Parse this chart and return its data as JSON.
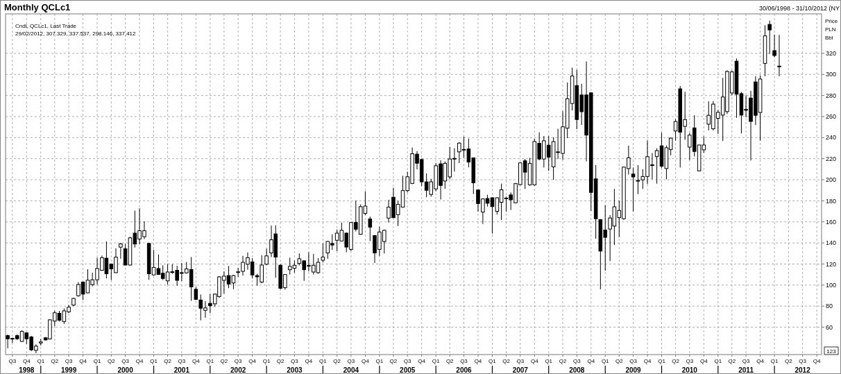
{
  "chart_data": {
    "type": "candlestick",
    "title": "Monthly QCLc1",
    "subtitle": "30/06/1998 - 31/10/2012 (NY",
    "ylabel": "Price PLN Bbl",
    "annotations": [
      "Cndl, QCLc1, Last Trade",
      "29/02/2012, 307.329, 337.537, 298.146, 337.412",
      "123"
    ],
    "grid": true,
    "xlim": [
      "1998-05-18",
      "2012-11-01"
    ],
    "ylim": [
      34,
      357.5
    ],
    "yticks": [
      60,
      80,
      100,
      120,
      140,
      160,
      180,
      200,
      220,
      240,
      260,
      280,
      300,
      320
    ],
    "xticks": [
      {
        "value": "1998-07",
        "label": "Q3"
      },
      {
        "value": "1998-10",
        "label": "Q4"
      },
      {
        "value": "1999-01",
        "label": "Q1"
      },
      {
        "value": "1999-04",
        "label": "Q2"
      },
      {
        "value": "1999-07",
        "label": "Q3"
      },
      {
        "value": "1999-10",
        "label": "Q4"
      },
      {
        "value": "2000-01",
        "label": "Q1"
      },
      {
        "value": "2000-04",
        "label": "Q2"
      },
      {
        "value": "2000-07",
        "label": "Q3"
      },
      {
        "value": "2000-10",
        "label": "Q4"
      },
      {
        "value": "2001-01",
        "label": "Q1"
      },
      {
        "value": "2001-04",
        "label": "Q2"
      },
      {
        "value": "2001-07",
        "label": "Q3"
      },
      {
        "value": "2001-10",
        "label": "Q4"
      },
      {
        "value": "2002-01",
        "label": "Q1"
      },
      {
        "value": "2002-04",
        "label": "Q2"
      },
      {
        "value": "2002-07",
        "label": "Q3"
      },
      {
        "value": "2002-10",
        "label": "Q4"
      },
      {
        "value": "2003-01",
        "label": "Q1"
      },
      {
        "value": "2003-04",
        "label": "Q2"
      },
      {
        "value": "2003-07",
        "label": "Q3"
      },
      {
        "value": "2003-10",
        "label": "Q4"
      },
      {
        "value": "2004-01",
        "label": "Q1"
      },
      {
        "value": "2004-04",
        "label": "Q2"
      },
      {
        "value": "2004-07",
        "label": "Q3"
      },
      {
        "value": "2004-10",
        "label": "Q4"
      },
      {
        "value": "2005-01",
        "label": "Q1"
      },
      {
        "value": "2005-04",
        "label": "Q2"
      },
      {
        "value": "2005-07",
        "label": "Q3"
      },
      {
        "value": "2005-10",
        "label": "Q4"
      },
      {
        "value": "2006-01",
        "label": "Q1"
      },
      {
        "value": "2006-04",
        "label": "Q2"
      },
      {
        "value": "2006-07",
        "label": "Q3"
      },
      {
        "value": "2006-10",
        "label": "Q4"
      },
      {
        "value": "2007-01",
        "label": "Q1"
      },
      {
        "value": "2007-04",
        "label": "Q2"
      },
      {
        "value": "2007-07",
        "label": "Q3"
      },
      {
        "value": "2007-10",
        "label": "Q4"
      },
      {
        "value": "2008-01",
        "label": "Q1"
      },
      {
        "value": "2008-04",
        "label": "Q2"
      },
      {
        "value": "2008-07",
        "label": "Q3"
      },
      {
        "value": "2008-10",
        "label": "Q4"
      },
      {
        "value": "2009-01",
        "label": "Q1"
      },
      {
        "value": "2009-04",
        "label": "Q2"
      },
      {
        "value": "2009-07",
        "label": "Q3"
      },
      {
        "value": "2009-10",
        "label": "Q4"
      },
      {
        "value": "2010-01",
        "label": "Q1"
      },
      {
        "value": "2010-04",
        "label": "Q2"
      },
      {
        "value": "2010-07",
        "label": "Q3"
      },
      {
        "value": "2010-10",
        "label": "Q4"
      },
      {
        "value": "2011-01",
        "label": "Q1"
      },
      {
        "value": "2011-04",
        "label": "Q2"
      },
      {
        "value": "2011-07",
        "label": "Q3"
      },
      {
        "value": "2011-10",
        "label": "Q4"
      },
      {
        "value": "2012-01",
        "label": "Q1"
      },
      {
        "value": "2012-04",
        "label": "Q2"
      },
      {
        "value": "2012-07",
        "label": "Q3"
      },
      {
        "value": "2012-10",
        "label": "Q4"
      }
    ],
    "x2lim": [
      "1998-05-18",
      "2012-11-01"
    ],
    "x2ticks": [
      {
        "value": "1998-10",
        "label": "1998"
      },
      {
        "value": "1999-01",
        "label": null
      },
      {
        "value": "1999-07",
        "label": "1999"
      },
      {
        "value": "2000-01",
        "label": null
      },
      {
        "value": "2000-07",
        "label": "2000"
      },
      {
        "value": "2001-01",
        "label": null
      },
      {
        "value": "2001-07",
        "label": "2001"
      },
      {
        "value": "2002-01",
        "label": null
      },
      {
        "value": "2002-07",
        "label": "2002"
      },
      {
        "value": "2003-01",
        "label": null
      },
      {
        "value": "2003-07",
        "label": "2003"
      },
      {
        "value": "2004-01",
        "label": null
      },
      {
        "value": "2004-07",
        "label": "2004"
      },
      {
        "value": "2005-01",
        "label": null
      },
      {
        "value": "2005-07",
        "label": "2005"
      },
      {
        "value": "2006-01",
        "label": null
      },
      {
        "value": "2006-07",
        "label": "2006"
      },
      {
        "value": "2007-01",
        "label": null
      },
      {
        "value": "2007-07",
        "label": "2007"
      },
      {
        "value": "2008-01",
        "label": null
      },
      {
        "value": "2008-07",
        "label": "2008"
      },
      {
        "value": "2009-01",
        "label": null
      },
      {
        "value": "2009-07",
        "label": "2009"
      },
      {
        "value": "2010-01",
        "label": null
      },
      {
        "value": "2010-07",
        "label": "2010"
      },
      {
        "value": "2011-01",
        "label": null
      },
      {
        "value": "2011-07",
        "label": "2011"
      },
      {
        "value": "2012-01",
        "label": null
      },
      {
        "value": "2012-07",
        "label": "2012"
      }
    ],
    "x": [
      "1998-06",
      "1998-07",
      "1998-08",
      "1998-09",
      "1998-10",
      "1998-11",
      "1998-12",
      "1999-01",
      "1999-02",
      "1999-03",
      "1999-04",
      "1999-05",
      "1999-06",
      "1999-07",
      "1999-08",
      "1999-09",
      "1999-10",
      "1999-11",
      "1999-12",
      "2000-01",
      "2000-02",
      "2000-03",
      "2000-04",
      "2000-05",
      "2000-06",
      "2000-07",
      "2000-08",
      "2000-09",
      "2000-10",
      "2000-11",
      "2000-12",
      "2001-01",
      "2001-02",
      "2001-03",
      "2001-04",
      "2001-05",
      "2001-06",
      "2001-07",
      "2001-08",
      "2001-09",
      "2001-10",
      "2001-11",
      "2001-12",
      "2002-01",
      "2002-02",
      "2002-03",
      "2002-04",
      "2002-05",
      "2002-06",
      "2002-07",
      "2002-08",
      "2002-09",
      "2002-10",
      "2002-11",
      "2002-12",
      "2003-01",
      "2003-02",
      "2003-03",
      "2003-04",
      "2003-05",
      "2003-06",
      "2003-07",
      "2003-08",
      "2003-09",
      "2003-10",
      "2003-11",
      "2003-12",
      "2004-01",
      "2004-02",
      "2004-03",
      "2004-04",
      "2004-05",
      "2004-06",
      "2004-07",
      "2004-08",
      "2004-09",
      "2004-10",
      "2004-11",
      "2004-12",
      "2005-01",
      "2005-02",
      "2005-03",
      "2005-04",
      "2005-05",
      "2005-06",
      "2005-07",
      "2005-08",
      "2005-09",
      "2005-10",
      "2005-11",
      "2005-12",
      "2006-01",
      "2006-02",
      "2006-03",
      "2006-04",
      "2006-05",
      "2006-06",
      "2006-07",
      "2006-08",
      "2006-09",
      "2006-10",
      "2006-11",
      "2006-12",
      "2007-01",
      "2007-02",
      "2007-03",
      "2007-04",
      "2007-05",
      "2007-06",
      "2007-07",
      "2007-08",
      "2007-09",
      "2007-10",
      "2007-11",
      "2007-12",
      "2008-01",
      "2008-02",
      "2008-03",
      "2008-04",
      "2008-05",
      "2008-06",
      "2008-07",
      "2008-08",
      "2008-09",
      "2008-10",
      "2008-11",
      "2008-12",
      "2009-01",
      "2009-02",
      "2009-03",
      "2009-04",
      "2009-05",
      "2009-06",
      "2009-07",
      "2009-08",
      "2009-09",
      "2009-10",
      "2009-11",
      "2009-12",
      "2010-01",
      "2010-02",
      "2010-03",
      "2010-04",
      "2010-05",
      "2010-06",
      "2010-07",
      "2010-08",
      "2010-09",
      "2010-10",
      "2010-11",
      "2010-12",
      "2011-01",
      "2011-02",
      "2011-03",
      "2011-04",
      "2011-05",
      "2011-06",
      "2011-07",
      "2011-08",
      "2011-09",
      "2011-10",
      "2011-11",
      "2011-12",
      "2012-01",
      "2012-02"
    ],
    "ohlc": [
      [
        52,
        53,
        40,
        49
      ],
      [
        48.8,
        50,
        45,
        49.4
      ],
      [
        52,
        53,
        48,
        49
      ],
      [
        46.5,
        57,
        46,
        56
      ],
      [
        54.6,
        55,
        44,
        49
      ],
      [
        50.7,
        51.8,
        37.4,
        38.5
      ],
      [
        38,
        43.8,
        35.4,
        42
      ],
      [
        45,
        48.8,
        42.6,
        46
      ],
      [
        49.9,
        50.6,
        47.3,
        47.9
      ],
      [
        48.8,
        67.5,
        48.3,
        67
      ],
      [
        65.8,
        75.5,
        61,
        73.7
      ],
      [
        73.2,
        75.5,
        65.4,
        66.6
      ],
      [
        65.4,
        77.8,
        63,
        75.5
      ],
      [
        74.5,
        81.3,
        73.4,
        79
      ],
      [
        81,
        88,
        80,
        87.3
      ],
      [
        89.8,
        102.8,
        89,
        100.5
      ],
      [
        102.8,
        103.3,
        85.8,
        91.4
      ],
      [
        92.6,
        115,
        92.2,
        104.6
      ],
      [
        100.5,
        111.8,
        98.7,
        105
      ],
      [
        105,
        126,
        100.5,
        115.7
      ],
      [
        114,
        128,
        113.5,
        126
      ],
      [
        125.5,
        141.4,
        106.3,
        110.7
      ],
      [
        120,
        120.5,
        104.7,
        115.3
      ],
      [
        111.8,
        135,
        111.4,
        126.5
      ],
      [
        136,
        140,
        125,
        139
      ],
      [
        134.5,
        139,
        118.8,
        119
      ],
      [
        119,
        145.9,
        118.8,
        144.8
      ],
      [
        149.3,
        170.7,
        135.7,
        139
      ],
      [
        143.7,
        172.9,
        139,
        151.6
      ],
      [
        145.9,
        160.5,
        143.7,
        151.6
      ],
      [
        139.5,
        140.2,
        105,
        110.7
      ],
      [
        109.6,
        133.4,
        109,
        116.8
      ],
      [
        115.7,
        129,
        109.6,
        110.1
      ],
      [
        111.2,
        118.8,
        104.7,
        106.3
      ],
      [
        104,
        120,
        100.5,
        112.4
      ],
      [
        112.6,
        120,
        110.7,
        112.4
      ],
      [
        114,
        118.3,
        99.4,
        104.5
      ],
      [
        111.6,
        121,
        103.8,
        111.8
      ],
      [
        111.6,
        122,
        110.9,
        115.3
      ],
      [
        114.8,
        126.6,
        85,
        98.3
      ],
      [
        96,
        98.3,
        85.8,
        86.4
      ],
      [
        85.8,
        91,
        66.5,
        78
      ],
      [
        76,
        84.8,
        69,
        78.3
      ],
      [
        82.6,
        91.4,
        73.4,
        80.4
      ],
      [
        82.2,
        91.9,
        79.6,
        91.4
      ],
      [
        89.1,
        108.5,
        88,
        107.8
      ],
      [
        104.5,
        113,
        91.9,
        108.5
      ],
      [
        109,
        118.1,
        97.1,
        101
      ],
      [
        102,
        109.6,
        96,
        109
      ],
      [
        112.2,
        116.4,
        107.8,
        112.6
      ],
      [
        113,
        127.7,
        109,
        121.6
      ],
      [
        119.8,
        131,
        114.6,
        126
      ],
      [
        122,
        125.5,
        106.3,
        109.6
      ],
      [
        109,
        110.7,
        99.4,
        107.8
      ],
      [
        102.8,
        128.3,
        101.7,
        119
      ],
      [
        119.8,
        134.5,
        119,
        127.7
      ],
      [
        130.5,
        156.5,
        126.6,
        143
      ],
      [
        148.6,
        156.7,
        107,
        126.6
      ],
      [
        118.8,
        119.8,
        96,
        97
      ],
      [
        97.5,
        110.3,
        95.7,
        110
      ],
      [
        114.6,
        126,
        110,
        117.7
      ],
      [
        116,
        123.2,
        111.8,
        118.8
      ],
      [
        120.5,
        130,
        118.6,
        125
      ],
      [
        123,
        123.6,
        104,
        114.6
      ],
      [
        118.3,
        131,
        113,
        118.6
      ],
      [
        112.4,
        129.6,
        110,
        118.8
      ],
      [
        111.8,
        125.5,
        110.7,
        121.6
      ],
      [
        123.6,
        139.5,
        121.4,
        126.6
      ],
      [
        130.5,
        141.8,
        125,
        141.4
      ],
      [
        139.5,
        148.2,
        133.4,
        138
      ],
      [
        142.5,
        152.7,
        132.2,
        149.3
      ],
      [
        141.8,
        159.4,
        141.4,
        152
      ],
      [
        149.3,
        150,
        131.1,
        136.1
      ],
      [
        133.9,
        159.9,
        132.3,
        159.4
      ],
      [
        159.4,
        180.3,
        150.9,
        153
      ],
      [
        148.2,
        176.6,
        147.7,
        174.4
      ],
      [
        168,
        189,
        166.4,
        175
      ],
      [
        162.8,
        165,
        141.8,
        155
      ],
      [
        147,
        147.5,
        121,
        130.5
      ],
      [
        133.9,
        155.4,
        127.7,
        150.4
      ],
      [
        141.4,
        152.7,
        130,
        152
      ],
      [
        163.6,
        181,
        159.4,
        174
      ],
      [
        183.4,
        192.5,
        163.9,
        164
      ],
      [
        166.8,
        180,
        156,
        176.6
      ],
      [
        174,
        203.8,
        173.8,
        189.7
      ],
      [
        189.7,
        207.6,
        187.9,
        202.8
      ],
      [
        196.5,
        230.6,
        195.8,
        224.7
      ],
      [
        224.3,
        227.2,
        209.9,
        215.7
      ],
      [
        219.2,
        220.1,
        194,
        198
      ],
      [
        198,
        206,
        183.4,
        190
      ],
      [
        186.1,
        200.8,
        184,
        198
      ],
      [
        191.3,
        216,
        189,
        213.3
      ],
      [
        215.1,
        218.5,
        181.3,
        194.6
      ],
      [
        198.8,
        217.4,
        191.3,
        215.6
      ],
      [
        202.7,
        231.1,
        200.4,
        219.7
      ],
      [
        219.6,
        230,
        207.7,
        220.3
      ],
      [
        226.5,
        235.5,
        215.8,
        234.8
      ],
      [
        228.4,
        241,
        220.8,
        228.8
      ],
      [
        229.2,
        239,
        211.8,
        216.8
      ],
      [
        220.8,
        221,
        186.4,
        197.1
      ],
      [
        190.3,
        190.8,
        169.8,
        177.4
      ],
      [
        169.3,
        182.3,
        158,
        181.8
      ],
      [
        182.2,
        185.8,
        174.5,
        177.7
      ],
      [
        182.9,
        183.4,
        148.9,
        174.5
      ],
      [
        170,
        183.4,
        167,
        182.9
      ],
      [
        178.6,
        196.3,
        161.8,
        190.5
      ],
      [
        182.6,
        184,
        169.8,
        182.3
      ],
      [
        185.6,
        188,
        171.3,
        181
      ],
      [
        178.1,
        197,
        177.7,
        196.3
      ],
      [
        195.4,
        216.6,
        194.7,
        216
      ],
      [
        218,
        219.7,
        191.3,
        207.2
      ],
      [
        195.2,
        220.8,
        194.3,
        215.6
      ],
      [
        195.2,
        239,
        194.3,
        236.3
      ],
      [
        234.6,
        245,
        218.5,
        219.7
      ],
      [
        219.7,
        241.6,
        211.6,
        237
      ],
      [
        232.8,
        241.6,
        208.4,
        221.5
      ],
      [
        212.2,
        240.2,
        199.9,
        236.2
      ],
      [
        226.3,
        248.4,
        219.7,
        226.5
      ],
      [
        225,
        265,
        219,
        250.3
      ],
      [
        249,
        292.3,
        239.5,
        276.9
      ],
      [
        272.4,
        306.4,
        265.8,
        298.5
      ],
      [
        289.4,
        304.4,
        248,
        257.2
      ],
      [
        280.5,
        291.2,
        252,
        264.6
      ],
      [
        280.5,
        312.3,
        217.4,
        242.4
      ],
      [
        282.5,
        283.2,
        170.4,
        188
      ],
      [
        200.8,
        214,
        144,
        163
      ],
      [
        162.2,
        162.6,
        96,
        132.3
      ],
      [
        152.3,
        176,
        113.6,
        145.3
      ],
      [
        153.2,
        166.4,
        122.8,
        163.7
      ],
      [
        156,
        191.3,
        138,
        174.3
      ],
      [
        164.1,
        180.3,
        145.5,
        170.9
      ],
      [
        163,
        212.5,
        161.9,
        212
      ],
      [
        210.6,
        232.3,
        204.9,
        220.8
      ],
      [
        205.4,
        211.6,
        169.8,
        202.7
      ],
      [
        198.8,
        213.9,
        186.4,
        199.3
      ],
      [
        199.9,
        210,
        191.3,
        203.1
      ],
      [
        203.1,
        237.2,
        195.8,
        221.9
      ],
      [
        214.2,
        225.4,
        200.4,
        214.1
      ],
      [
        222,
        229.9,
        196.3,
        227.6
      ],
      [
        232.2,
        244.7,
        211.3,
        212.9
      ],
      [
        210.6,
        232.6,
        200.4,
        230.4
      ],
      [
        228.8,
        240.2,
        223.1,
        239.5
      ],
      [
        246.3,
        257.6,
        237.2,
        255.3
      ],
      [
        286.3,
        289,
        211.6,
        245.2
      ],
      [
        250.7,
        283.5,
        237.9,
        257.1
      ],
      [
        231,
        244.7,
        218.7,
        242.4
      ],
      [
        249.2,
        261.2,
        222.2,
        226.9
      ],
      [
        208.4,
        233.3,
        207.9,
        233
      ],
      [
        228.4,
        241.2,
        225.6,
        233
      ],
      [
        252.8,
        274.5,
        246.9,
        261.2
      ],
      [
        248.4,
        274.7,
        246.9,
        271.8
      ],
      [
        258.3,
        266.2,
        243.5,
        264
      ],
      [
        261.4,
        296.8,
        236.8,
        278.6
      ],
      [
        264.7,
        303.9,
        262.4,
        302.8
      ],
      [
        282.4,
        303.9,
        280.2,
        302.4
      ],
      [
        312.6,
        315.1,
        258.8,
        281.2
      ],
      [
        281.8,
        283.4,
        244.1,
        261.4
      ],
      [
        266.8,
        280.2,
        259.3,
        266
      ],
      [
        277.6,
        284.4,
        218.3,
        255.4
      ],
      [
        292.9,
        298.3,
        251.9,
        261.2
      ],
      [
        263.9,
        299.1,
        237,
        295.6
      ],
      [
        310.5,
        346.7,
        298.3,
        336.6
      ],
      [
        347.5,
        351.1,
        319.5,
        342.3
      ],
      [
        322.6,
        337.7,
        316.4,
        318
      ],
      [
        307.329,
        337.537,
        298.146,
        307.9
      ]
    ]
  }
}
